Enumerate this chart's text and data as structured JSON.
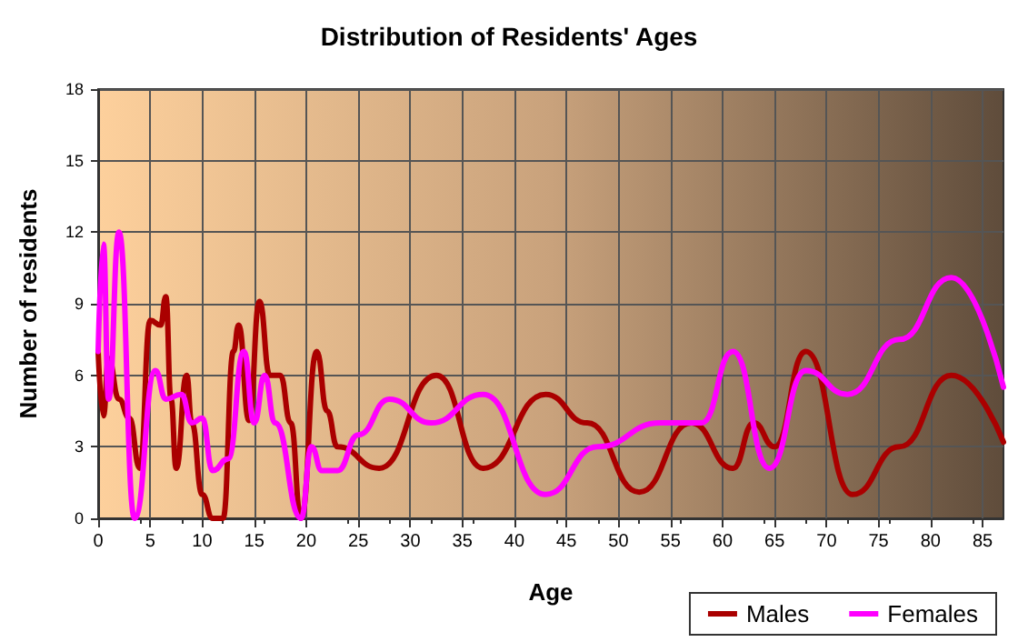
{
  "chart_data": {
    "type": "line",
    "title": "Distribution of Residents' Ages",
    "xlabel": "Age",
    "ylabel": "Number of residents",
    "xlim": [
      0,
      87
    ],
    "xticks": [
      0,
      5,
      10,
      15,
      20,
      25,
      30,
      35,
      40,
      45,
      50,
      55,
      60,
      65,
      70,
      75,
      80,
      85
    ],
    "ylim": [
      0,
      18
    ],
    "yticks": [
      0,
      3,
      6,
      9,
      12,
      15,
      18
    ],
    "grid": true,
    "legend": "bottom right",
    "marker": "none",
    "line_style": "solid",
    "series": [
      {
        "name": "Males",
        "color": "#aa0000",
        "x": [
          0,
          0.5,
          1,
          2,
          3,
          4,
          5,
          6,
          6.5,
          7,
          7.5,
          8.5,
          9,
          10,
          11,
          12,
          13,
          13.5,
          14.5,
          15.5,
          16.5,
          17.5,
          18.5,
          19.5,
          21,
          22,
          23,
          27,
          32.5,
          37,
          43,
          47,
          52,
          57,
          61,
          63,
          65,
          68,
          72.5,
          77,
          82,
          87
        ],
        "values": [
          7,
          4.3,
          6.7,
          5,
          4.2,
          2.1,
          8.3,
          8.1,
          9.3,
          5,
          2.1,
          6,
          4,
          1,
          0,
          0,
          7,
          8.1,
          4.1,
          9.1,
          6,
          6,
          4,
          0,
          7,
          4.5,
          3,
          2.1,
          6,
          2.1,
          5.2,
          4,
          1.1,
          4,
          2.1,
          4,
          3,
          7,
          1,
          3,
          6,
          3.2
        ]
      },
      {
        "name": "Females",
        "color": "#ff00ff",
        "x": [
          0,
          0.5,
          1,
          2,
          3.5,
          5.5,
          6.5,
          8,
          9,
          10,
          11,
          12.5,
          14,
          15,
          16,
          17,
          19.5,
          20.5,
          21.5,
          23,
          25,
          28,
          32,
          37,
          43,
          48,
          54,
          58,
          61,
          64.5,
          68,
          72,
          77,
          82,
          87
        ],
        "values": [
          7,
          11.5,
          5,
          12,
          0,
          6.2,
          5,
          5.2,
          4,
          4.2,
          2,
          2.5,
          7,
          4,
          6,
          4,
          0,
          3,
          2,
          2,
          3.5,
          5,
          4,
          5.2,
          1,
          3,
          4,
          4,
          7,
          2.1,
          6.2,
          5.2,
          7.5,
          10.1,
          5.5
        ]
      }
    ]
  }
}
